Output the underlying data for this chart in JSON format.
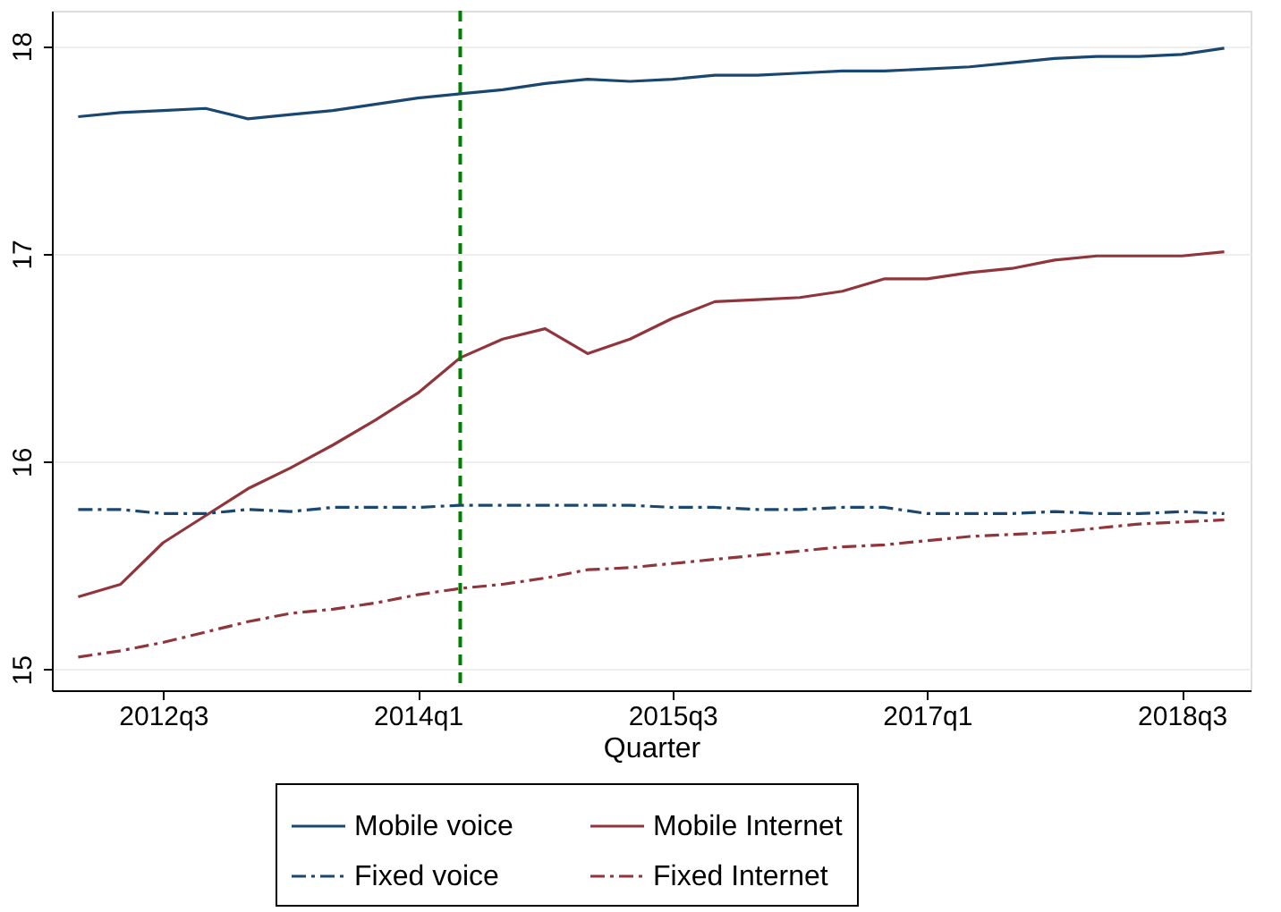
{
  "chart_data": {
    "type": "line",
    "xlabel": "Quarter",
    "categories": [
      null,
      null,
      "2012q3",
      null,
      null,
      null,
      null,
      null,
      "2014q1",
      null,
      null,
      null,
      null,
      null,
      "2015q3",
      null,
      null,
      null,
      null,
      null,
      "2017q1",
      null,
      null,
      null,
      null,
      null,
      "2018q3",
      null
    ],
    "series": [
      {
        "name": "Mobile voice",
        "color": "#1a476f",
        "line_style": "solid",
        "values": [
          17.66,
          17.68,
          17.69,
          17.7,
          17.65,
          17.67,
          17.69,
          17.72,
          17.75,
          17.77,
          17.79,
          17.82,
          17.84,
          17.83,
          17.84,
          17.86,
          17.86,
          17.87,
          17.88,
          17.88,
          17.89,
          17.9,
          17.92,
          17.94,
          17.95,
          17.95,
          17.96,
          17.99
        ]
      },
      {
        "name": "Mobile Internet",
        "color": "#90353b",
        "line_style": "solid",
        "values": [
          15.35,
          15.41,
          15.61,
          15.74,
          15.87,
          15.97,
          16.08,
          16.2,
          16.33,
          16.5,
          16.59,
          16.64,
          16.52,
          16.59,
          16.69,
          16.77,
          16.78,
          16.79,
          16.82,
          16.88,
          16.88,
          16.91,
          16.93,
          16.97,
          16.99,
          16.99,
          16.99,
          17.01
        ]
      },
      {
        "name": "Fixed voice",
        "color": "#1a476f",
        "line_style": "dashdot",
        "values": [
          15.77,
          15.77,
          15.75,
          15.75,
          15.77,
          15.76,
          15.78,
          15.78,
          15.78,
          15.79,
          15.79,
          15.79,
          15.79,
          15.79,
          15.78,
          15.78,
          15.77,
          15.77,
          15.78,
          15.78,
          15.75,
          15.75,
          15.75,
          15.76,
          15.75,
          15.75,
          15.76,
          15.75
        ]
      },
      {
        "name": "Fixed Internet",
        "color": "#90353b",
        "line_style": "dashdot",
        "values": [
          15.06,
          15.09,
          15.13,
          15.18,
          15.23,
          15.27,
          15.29,
          15.32,
          15.36,
          15.39,
          15.41,
          15.44,
          15.48,
          15.49,
          15.51,
          15.53,
          15.55,
          15.57,
          15.59,
          15.6,
          15.62,
          15.64,
          15.65,
          15.66,
          15.68,
          15.7,
          15.71,
          15.72
        ]
      }
    ],
    "ylim": [
      14.9,
      18.17
    ],
    "yticks": [
      15,
      16,
      17,
      18
    ],
    "grid": "y",
    "legend": "bottom"
  }
}
